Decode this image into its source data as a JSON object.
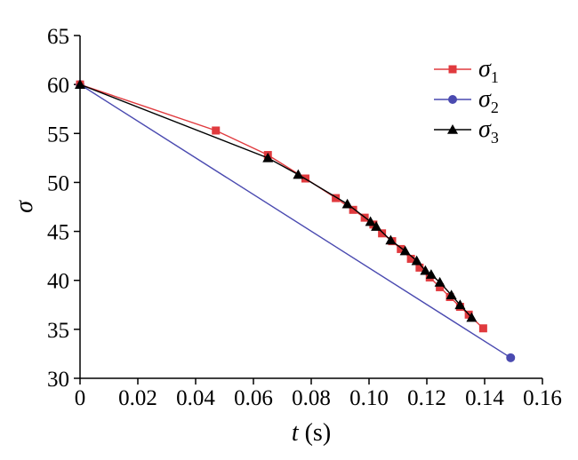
{
  "chart_data": {
    "type": "line",
    "xlabel": {
      "var": "t",
      "unit": " (s)"
    },
    "ylabel": "σ",
    "xlim": [
      0,
      0.16
    ],
    "ylim": [
      30,
      65
    ],
    "x_ticks": [
      0,
      0.02,
      0.04,
      0.06,
      0.08,
      0.1,
      0.12,
      0.14,
      0.16
    ],
    "x_tick_labels": [
      "0",
      "0.02",
      "0.04",
      "0.06",
      "0.08",
      "0.10",
      "0.12",
      "0.14",
      "0.16"
    ],
    "y_ticks": [
      30,
      35,
      40,
      45,
      50,
      55,
      60,
      65
    ],
    "y_tick_labels": [
      "30",
      "35",
      "40",
      "45",
      "50",
      "55",
      "60",
      "65"
    ],
    "grid": false,
    "legend_position": "top-right",
    "series": [
      {
        "name": "σ1",
        "legend_main": "σ",
        "legend_sub": "1",
        "color": "#e03a3e",
        "marker": "square",
        "x": [
          0,
          0.047,
          0.065,
          0.078,
          0.0885,
          0.0945,
          0.0985,
          0.1015,
          0.1045,
          0.108,
          0.111,
          0.1145,
          0.1175,
          0.121,
          0.1245,
          0.128,
          0.1315,
          0.1345,
          0.1395
        ],
        "y": [
          60,
          55.3,
          52.8,
          50.4,
          48.4,
          47.2,
          46.4,
          45.7,
          44.8,
          44.0,
          43.2,
          42.2,
          41.3,
          40.3,
          39.3,
          38.3,
          37.3,
          36.5,
          35.1
        ]
      },
      {
        "name": "σ2",
        "legend_main": "σ",
        "legend_sub": "2",
        "color": "#4a4ab0",
        "marker": "circle",
        "x": [
          0,
          0.149
        ],
        "y": [
          60,
          32.1
        ]
      },
      {
        "name": "σ3",
        "legend_main": "σ",
        "legend_sub": "3",
        "color": "#000000",
        "marker": "triangle",
        "x": [
          0,
          0.065,
          0.0755,
          0.0925,
          0.1005,
          0.1025,
          0.1075,
          0.1125,
          0.1165,
          0.1195,
          0.1215,
          0.1245,
          0.1285,
          0.1315,
          0.1355
        ],
        "y": [
          60,
          52.5,
          50.8,
          47.8,
          46.0,
          45.5,
          44.1,
          43.0,
          42.0,
          41.0,
          40.6,
          39.8,
          38.5,
          37.5,
          36.2
        ]
      }
    ]
  }
}
